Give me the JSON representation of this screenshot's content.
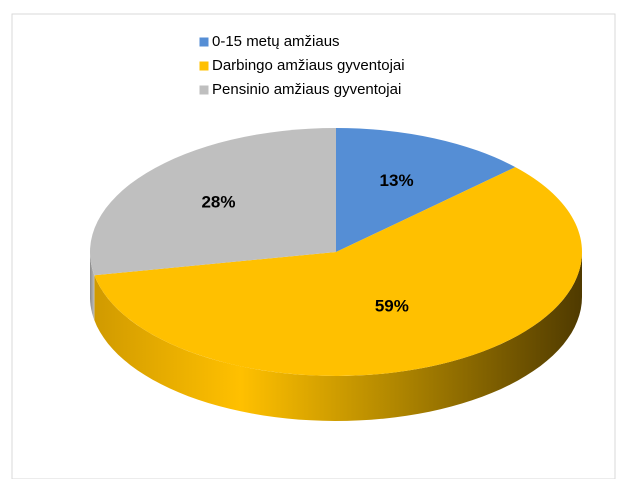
{
  "chart_data": {
    "type": "pie",
    "categories": [
      "0-15 metų amžiaus",
      "Darbingo amžiaus gyventojai",
      "Pensinio amžiaus gyventojai"
    ],
    "values": [
      13,
      59,
      28
    ],
    "value_labels": [
      "13%",
      "59%",
      "28%"
    ],
    "colors": [
      "#558ed5",
      "#ffc000",
      "#bfbfbf"
    ],
    "legend": "top"
  }
}
